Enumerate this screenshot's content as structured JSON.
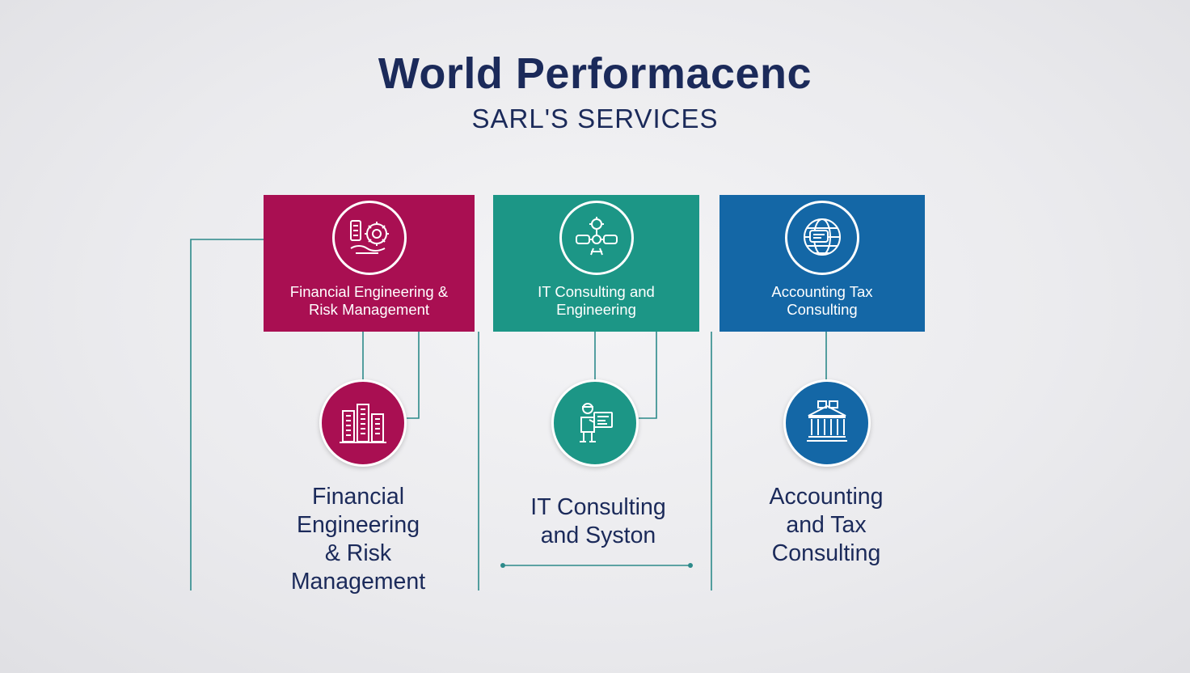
{
  "header": {
    "title": "World Performacenc",
    "subtitle": "SARL'S SERVICES"
  },
  "colors": {
    "magenta": "#a90f52",
    "teal": "#1c9686",
    "blue": "#1467a6",
    "navy": "#1b2a5a",
    "connector": "#2c8a8a"
  },
  "cards": [
    {
      "label": "Financial Engineering &\nRisk Management",
      "icon": "finance-gear-icon"
    },
    {
      "label": "IT Consulting and\nEngineering",
      "icon": "it-network-icon"
    },
    {
      "label": "Accounting Tax\nConsulting",
      "icon": "globe-ledger-icon"
    }
  ],
  "services": [
    {
      "label": "Financial\nEngineering\n& Risk\nManagement",
      "icon": "buildings-icon"
    },
    {
      "label": "IT Consulting\nand Syston",
      "icon": "engineer-icon"
    },
    {
      "label": "Accounting\nand Tax\nConsulting",
      "icon": "bank-icon"
    }
  ]
}
